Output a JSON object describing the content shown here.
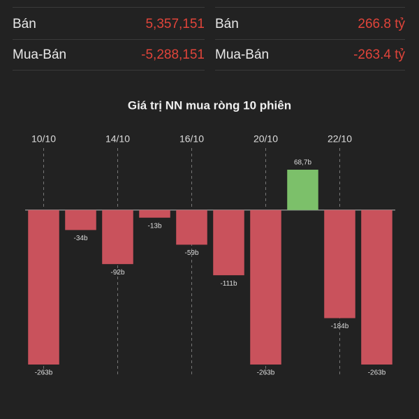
{
  "table": {
    "left": [
      [
        "Bán",
        "5,357,151"
      ],
      [
        "Mua-Bán",
        "-5,288,151"
      ]
    ],
    "right": [
      [
        "Bán",
        "266.8 tỷ"
      ],
      [
        "Mua-Bán",
        "-263.4 tỷ"
      ]
    ]
  },
  "chart_data": {
    "type": "bar",
    "title": "Giá trị NN mua ròng 10 phiên",
    "categories": [
      "10/10",
      null,
      "14/10",
      null,
      "16/10",
      null,
      "20/10",
      null,
      "22/10",
      null
    ],
    "values": [
      -263,
      -34,
      -92,
      -13,
      -59,
      -111,
      -263,
      68.7,
      -184,
      -263
    ],
    "value_labels": [
      "-263b",
      "-34b",
      "-92b",
      "-13b",
      "-59b",
      "-111b",
      "-263b",
      "68,7b",
      "-184b",
      "-263b"
    ],
    "positive_color": "#7cc06a",
    "negative_color": "#c9525c"
  }
}
